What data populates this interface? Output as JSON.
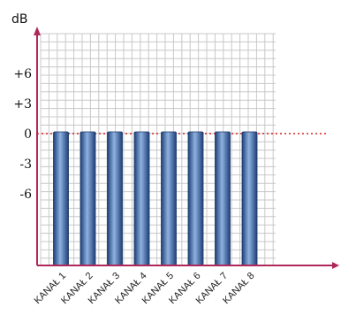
{
  "chart_data": {
    "type": "bar",
    "ylabel": "dB",
    "categories": [
      "KANAŁ 1",
      "KANAŁ 2",
      "KANAŁ 3",
      "KANAŁ 4",
      "KANAŁ 5",
      "KANAŁ 6",
      "KANAŁ 7",
      "KANAŁ 8"
    ],
    "values": [
      0,
      0,
      0,
      0,
      0,
      0,
      0,
      0
    ],
    "yticks": [
      {
        "value": 6,
        "label": "+6"
      },
      {
        "value": 3,
        "label": "+3"
      },
      {
        "value": 0,
        "label": "0"
      },
      {
        "value": -3,
        "label": "-3"
      },
      {
        "value": -6,
        "label": "-6"
      }
    ],
    "ylim": [
      -21,
      14
    ],
    "reference_line": {
      "value": 0,
      "style": "dotted",
      "color": "#d92020"
    },
    "grid": true,
    "colors": {
      "bar": "#2d5590",
      "bar_highlight": "#8eb2e0",
      "grid": "#c8c8c8",
      "axis": "#b0275a"
    }
  }
}
